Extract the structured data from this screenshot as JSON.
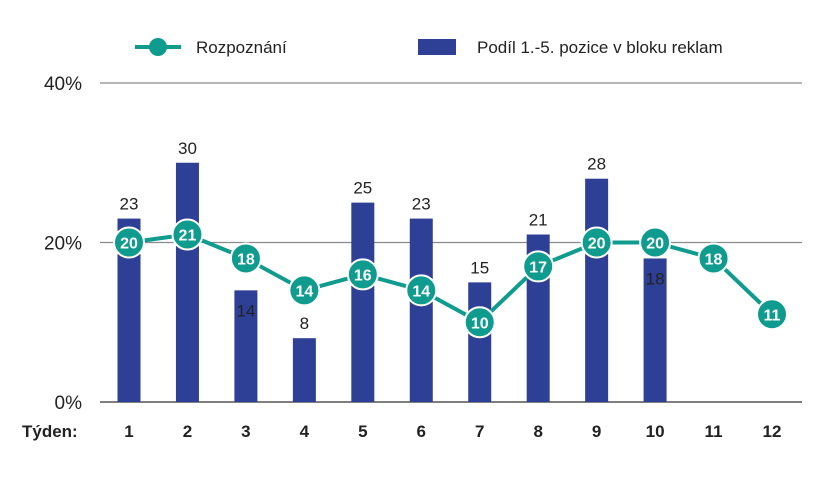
{
  "chart_data": {
    "type": "bar",
    "xlabel": "Týden:",
    "categories": [
      "1",
      "2",
      "3",
      "4",
      "5",
      "6",
      "7",
      "8",
      "9",
      "10",
      "11",
      "12"
    ],
    "ylim": [
      0,
      40
    ],
    "yticks": [
      "0%",
      "20%",
      "40%"
    ],
    "ytick_values": [
      0,
      20,
      40
    ],
    "grid": true,
    "legend_position": "top",
    "series": [
      {
        "name": "Podíl 1.-5. pozice v bloku reklam",
        "kind": "bar",
        "color": "#2E3F96",
        "values": [
          23,
          30,
          14,
          8,
          25,
          23,
          15,
          21,
          28,
          18,
          null,
          null
        ],
        "labels": [
          "23",
          "30",
          "14",
          "8",
          "25",
          "23",
          "15",
          "21",
          "28",
          "18",
          "",
          ""
        ]
      },
      {
        "name": "Rozpoznání",
        "kind": "line",
        "color": "#0F9B8E",
        "values": [
          20,
          21,
          18,
          14,
          16,
          14,
          10,
          17,
          20,
          20,
          18,
          11
        ],
        "labels": [
          "20",
          "21",
          "18",
          "14",
          "16",
          "14",
          "10",
          "17",
          "20",
          "20",
          "18",
          "11"
        ]
      }
    ]
  }
}
